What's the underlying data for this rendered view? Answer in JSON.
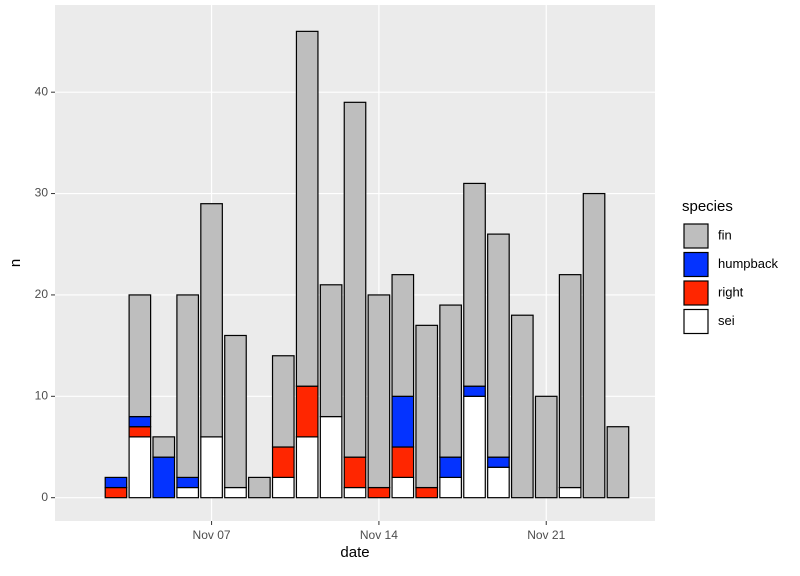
{
  "chart_data": {
    "type": "stacked-bar",
    "x_label": "date",
    "y_label": "n",
    "legend_title": "species",
    "x": [
      2,
      3,
      4,
      5,
      6,
      7,
      8,
      9,
      10,
      11,
      12,
      13,
      14,
      15,
      16,
      17,
      18,
      19,
      20,
      21,
      22,
      23,
      24
    ],
    "series": [
      {
        "name": "fin",
        "color": "#bebebe",
        "values": [
          0,
          0,
          12,
          2,
          18,
          23,
          15,
          2,
          9,
          35,
          13,
          35,
          19,
          12,
          16,
          15,
          20,
          22,
          18,
          10,
          21,
          30,
          7
        ]
      },
      {
        "name": "humpback",
        "color": "#0433ff",
        "values": [
          0,
          1,
          1,
          4,
          1,
          0,
          0,
          0,
          0,
          0,
          0,
          0,
          0,
          5,
          0,
          2,
          1,
          1,
          0,
          0,
          0,
          0,
          0
        ]
      },
      {
        "name": "right",
        "color": "#ff2600",
        "values": [
          0,
          1,
          1,
          0,
          0,
          0,
          0,
          0,
          3,
          5,
          0,
          3,
          1,
          3,
          1,
          0,
          0,
          0,
          0,
          0,
          0,
          0,
          0
        ]
      },
      {
        "name": "sei",
        "color": "#ffffff",
        "values": [
          0,
          0,
          6,
          0,
          1,
          6,
          1,
          0,
          2,
          6,
          8,
          1,
          0,
          2,
          0,
          2,
          10,
          3,
          0,
          0,
          1,
          0,
          0
        ]
      }
    ],
    "xlim": [
      0.45,
      25.55
    ],
    "ylim": [
      -2.3,
      48.6
    ],
    "xticks": [
      {
        "value": 7,
        "label": "Nov 07"
      },
      {
        "value": 14,
        "label": "Nov 14"
      },
      {
        "value": 21,
        "label": "Nov 21"
      }
    ],
    "yticks": [
      0,
      10,
      20,
      30,
      40
    ],
    "grid": true,
    "legend": "right"
  }
}
